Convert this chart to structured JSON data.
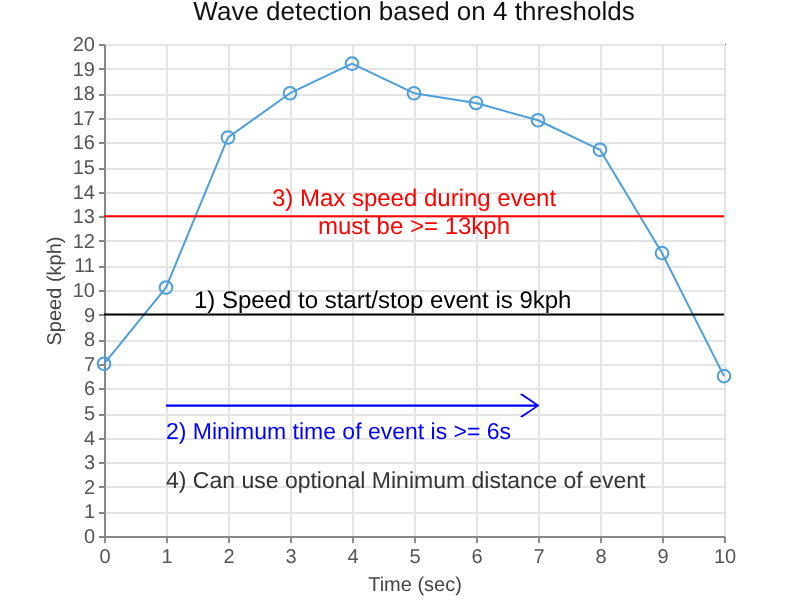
{
  "chart_data": {
    "type": "line",
    "title": "Wave detection based on 4 thresholds",
    "xlabel": "Time (sec)",
    "ylabel": "Speed (kph)",
    "x": [
      0,
      1,
      2,
      3,
      4,
      5,
      6,
      7,
      8,
      9,
      10
    ],
    "series": [
      {
        "color": "#4d9fdb",
        "values": [
          7,
          10.1,
          16.2,
          18,
          19.2,
          18,
          17.6,
          16.9,
          15.7,
          11.5,
          6.5
        ]
      }
    ],
    "xlim": [
      0,
      10
    ],
    "xticks": [
      0,
      1,
      2,
      3,
      4,
      5,
      6,
      7,
      8,
      9,
      10
    ],
    "ylim": [
      0,
      20
    ],
    "yticks": [
      0,
      1,
      2,
      3,
      4,
      5,
      6,
      7,
      8,
      9,
      10,
      11,
      12,
      13,
      14,
      15,
      16,
      17,
      18,
      19,
      20
    ],
    "ref_lines": [
      {
        "axis": "y",
        "value": 13,
        "label": "3) Max speed during event\nmust be >= 13kph",
        "color": "#ff0000"
      },
      {
        "axis": "y",
        "value": 9,
        "label": "1) Speed to start/stop event is 9kph",
        "color": "#000000"
      }
    ],
    "annotations": [
      "2) Minimum time of event is >= 6s",
      "4) Can use optional Minimum distance of event"
    ],
    "grid": true,
    "marker": "circle",
    "line_style": "solid"
  }
}
